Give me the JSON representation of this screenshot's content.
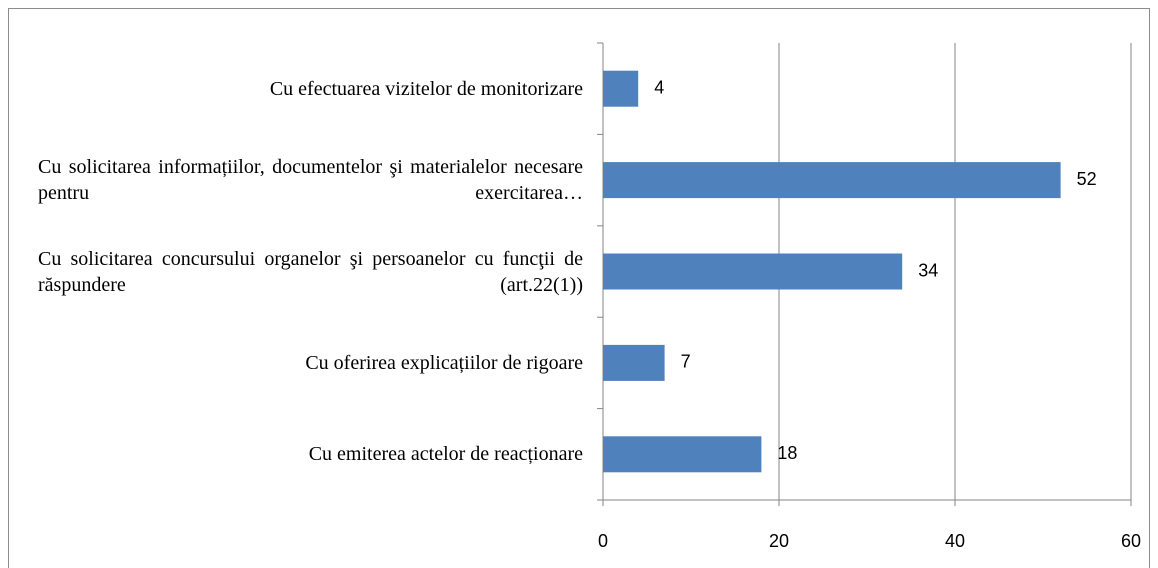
{
  "chart_data": {
    "type": "bar",
    "orientation": "horizontal",
    "categories": [
      "Cu efectuarea vizitelor de monitorizare",
      "Cu solicitarea informațiilor, documentelor şi materialelor necesare pentru exercitarea…",
      "Cu solicitarea concursului organelor şi persoanelor cu funcţii de răspundere (art.22(1))",
      "Cu oferirea explicațiilor de rigoare",
      "Cu emiterea actelor de reacționare"
    ],
    "values": [
      4,
      52,
      34,
      7,
      18
    ],
    "color": "#4f81bd",
    "xlim": [
      0,
      60
    ],
    "xticks": [
      0,
      20,
      40,
      60
    ],
    "grid": true
  }
}
